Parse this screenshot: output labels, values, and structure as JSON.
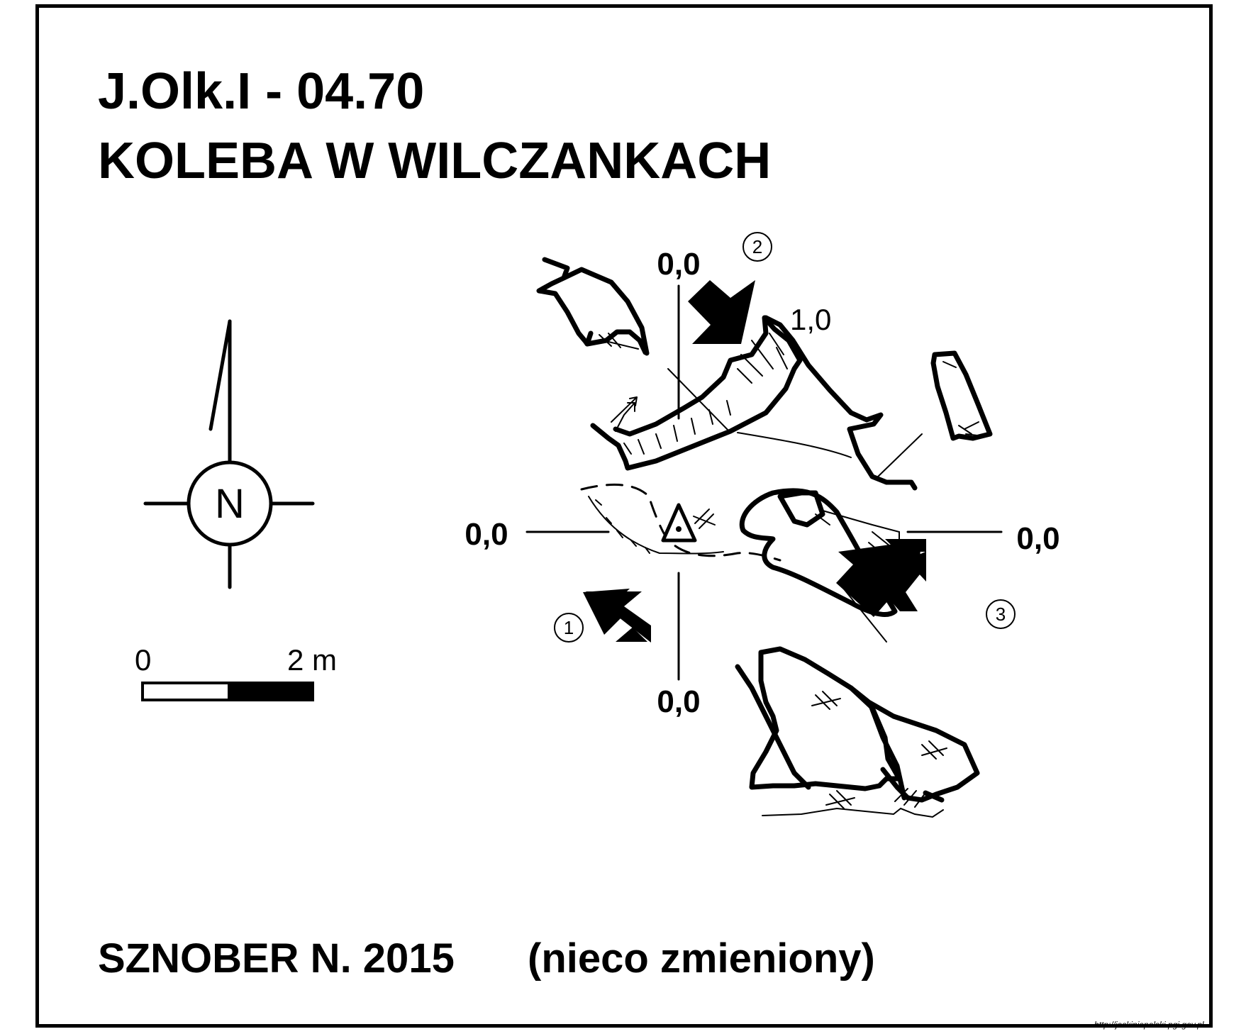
{
  "map": {
    "title_code": "J.Olk.I - 04.70",
    "title_name": "KOLEBA W WILCZANKACH",
    "author": "SZNOBER N. 2015",
    "author_note": "(nieco zmieniony)",
    "source_url": "http://jaskiniepolski.pgi.gov.pl"
  },
  "compass": {
    "letter": "N"
  },
  "scale_bar": {
    "start_label": "0",
    "end_label": "2 m"
  },
  "elevations": {
    "top": "0,0",
    "left": "0,0",
    "right": "0,0",
    "bottom": "0,0",
    "upper": "1,0"
  },
  "view_markers": {
    "one": "1",
    "two": "2",
    "three": "3"
  },
  "colors": {
    "ink": "#000000",
    "paper": "#ffffff"
  }
}
